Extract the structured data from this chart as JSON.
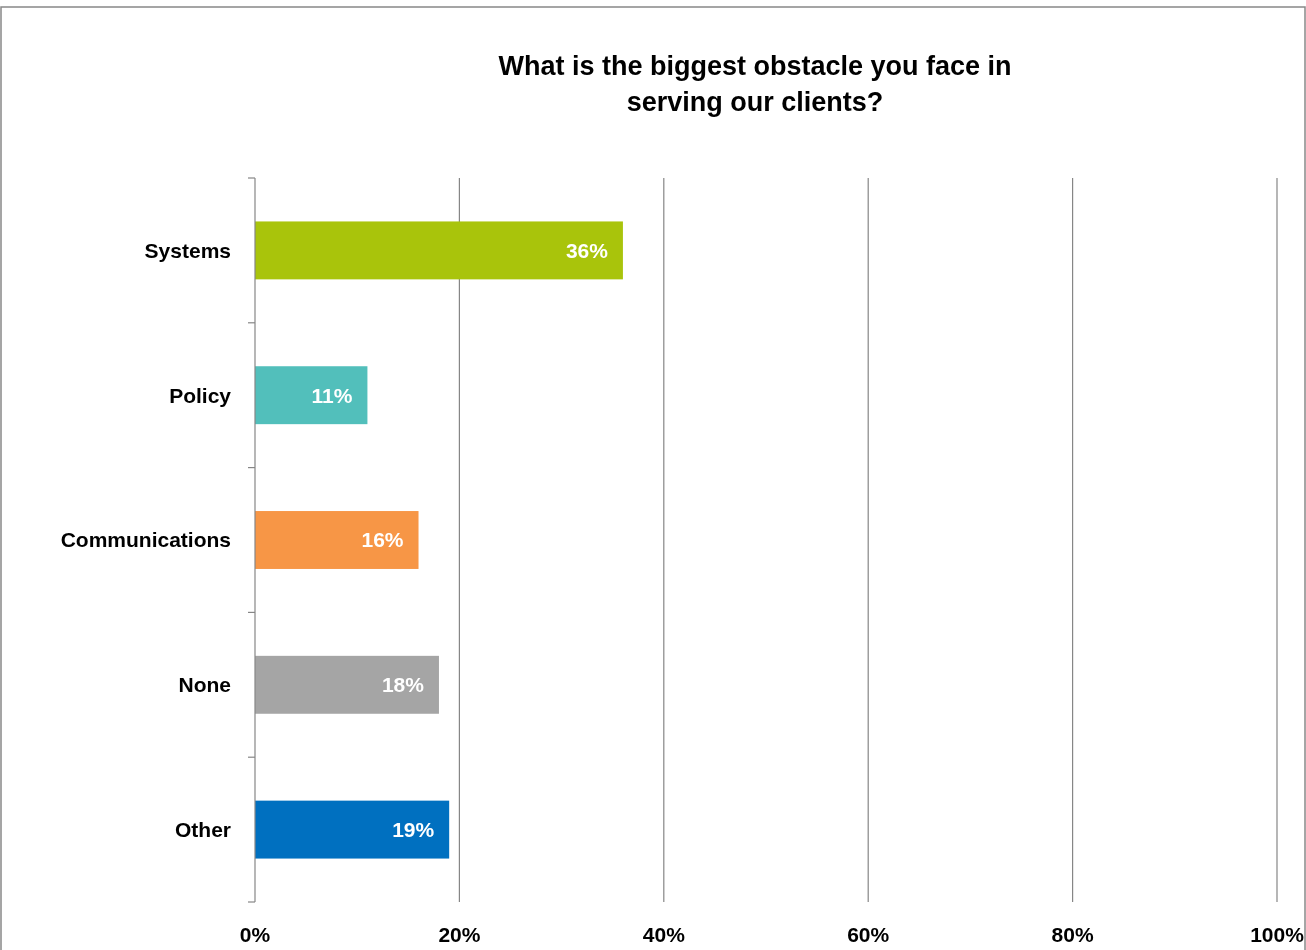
{
  "chart_data": {
    "type": "bar",
    "orientation": "horizontal",
    "title": "What is the biggest obstacle you face in\nserving our clients?",
    "categories": [
      "Systems",
      "Policy",
      "Communications",
      "None",
      "Other"
    ],
    "values": [
      36,
      11,
      16,
      18,
      19
    ],
    "colors": [
      "#a9c40b",
      "#52bfbb",
      "#f79646",
      "#a5a5a5",
      "#0070c0"
    ],
    "value_labels": [
      "36%",
      "11%",
      "16%",
      "18%",
      "19%"
    ],
    "xlim": [
      0,
      100
    ],
    "xticks": [
      {
        "value": 0,
        "label": "0%"
      },
      {
        "value": 20,
        "label": "20%"
      },
      {
        "value": 40,
        "label": "40%"
      },
      {
        "value": 60,
        "label": "60%"
      },
      {
        "value": 80,
        "label": "80%"
      },
      {
        "value": 100,
        "label": "100%"
      }
    ],
    "grid": "x"
  }
}
